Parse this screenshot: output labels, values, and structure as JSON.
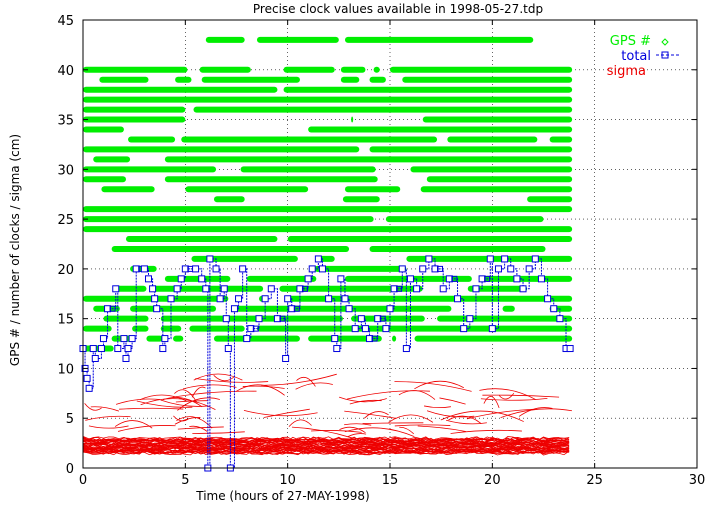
{
  "chart_data": {
    "type": "scatter",
    "title": "Precise clock values available in 1998-05-27.tdp",
    "xlabel": "Time (hours of 27-MAY-1998)",
    "ylabel": "GPS # / number of clocks / sigma (cm)",
    "xlim": [
      0,
      30
    ],
    "ylim": [
      0,
      45
    ],
    "xticks": [
      "0",
      "5",
      "10",
      "15",
      "20",
      "25",
      "30"
    ],
    "yticks": [
      "0",
      "5",
      "10",
      "15",
      "20",
      "25",
      "30",
      "35",
      "40",
      "45"
    ],
    "grid": true,
    "legend_position": "top-right",
    "colors": {
      "gps": "#00ee00",
      "total": "#0000dd",
      "sigma": "#ee0000"
    },
    "series": [
      {
        "name": "GPS #",
        "marker": "diamond",
        "segments": [
          {
            "y": 43,
            "spans": [
              [
                6,
                7.9
              ],
              [
                8.5,
                12.5
              ],
              [
                12.8,
                22.0
              ]
            ]
          },
          {
            "y": 40,
            "spans": [
              [
                0,
                5.1
              ],
              [
                5.7,
                8.2
              ],
              [
                9.8,
                12.3
              ],
              [
                12.6,
                13.8
              ],
              [
                14.2,
                14.5
              ],
              [
                15.0,
                23.9
              ]
            ]
          },
          {
            "y": 39,
            "spans": [
              [
                0.8,
                3.2
              ],
              [
                4.5,
                5.3
              ],
              [
                5.8,
                10.6
              ],
              [
                12.6,
                13.5
              ],
              [
                14.0,
                14.8
              ],
              [
                15.6,
                23.9
              ]
            ]
          },
          {
            "y": 38,
            "spans": [
              [
                0,
                9.5
              ],
              [
                9.8,
                23.9
              ]
            ]
          },
          {
            "y": 37,
            "spans": [
              [
                0,
                23.9
              ]
            ]
          },
          {
            "y": 36,
            "spans": [
              [
                0,
                5.0
              ],
              [
                5.4,
                23.9
              ]
            ]
          },
          {
            "y": 35,
            "spans": [
              [
                0,
                5.0
              ],
              [
                13.1,
                13.2
              ],
              [
                16.6,
                23.9
              ]
            ]
          },
          {
            "y": 34,
            "spans": [
              [
                0,
                2.0
              ],
              [
                11.0,
                23.9
              ]
            ]
          },
          {
            "y": 33,
            "spans": [
              [
                2.2,
                4.5
              ],
              [
                4.8,
                17.3
              ],
              [
                17.8,
                22.2
              ],
              [
                22.8,
                23.9
              ]
            ]
          },
          {
            "y": 32,
            "spans": [
              [
                0,
                13.5
              ],
              [
                14.0,
                23.9
              ]
            ]
          },
          {
            "y": 31,
            "spans": [
              [
                0.5,
                2.3
              ],
              [
                4.0,
                23.9
              ]
            ]
          },
          {
            "y": 30,
            "spans": [
              [
                0,
                6.5
              ],
              [
                7.7,
                14.3
              ],
              [
                16.0,
                23.9
              ]
            ]
          },
          {
            "y": 29,
            "spans": [
              [
                0,
                2.1
              ],
              [
                4.0,
                14.4
              ],
              [
                16.8,
                23.9
              ]
            ]
          },
          {
            "y": 28,
            "spans": [
              [
                0.9,
                3.5
              ],
              [
                5.0,
                11.0
              ],
              [
                12.8,
                15.5
              ],
              [
                16.5,
                23.9
              ]
            ]
          },
          {
            "y": 27,
            "spans": [
              [
                6.4,
                7.9
              ],
              [
                12.7,
                14.5
              ],
              [
                21.7,
                23.9
              ]
            ]
          },
          {
            "y": 26,
            "spans": [
              [
                0,
                23.9
              ]
            ]
          },
          {
            "y": 25,
            "spans": [
              [
                0,
                14.2
              ],
              [
                14.8,
                22.5
              ]
            ]
          },
          {
            "y": 24,
            "spans": [
              [
                0,
                23.9
              ]
            ]
          },
          {
            "y": 23,
            "spans": [
              [
                2.1,
                9.5
              ],
              [
                10.0,
                23.9
              ]
            ]
          },
          {
            "y": 22,
            "spans": [
              [
                1.4,
                13.0
              ],
              [
                14.0,
                22.6
              ]
            ]
          },
          {
            "y": 21,
            "spans": [
              [
                5.3,
                10.5
              ],
              [
                11.5,
                12.3
              ],
              [
                15.8,
                23.9
              ]
            ]
          },
          {
            "y": 20,
            "spans": [
              [
                2.3,
                3.6
              ],
              [
                11.3,
                15.8
              ]
            ]
          },
          {
            "y": 19,
            "spans": [
              [
                4.0,
                7.2
              ],
              [
                8.0,
                11.4
              ],
              [
                12.8,
                19.0
              ],
              [
                19.6,
                23.9
              ]
            ]
          },
          {
            "y": 18,
            "spans": [
              [
                1.5,
                3.1
              ],
              [
                3.4,
                8.8
              ],
              [
                9.6,
                16.6
              ],
              [
                18.8,
                21.7
              ]
            ]
          },
          {
            "y": 17,
            "spans": [
              [
                0,
                7.1
              ],
              [
                8.6,
                9.0
              ],
              [
                10.0,
                23.9
              ]
            ]
          },
          {
            "y": 16,
            "spans": [
              [
                0.5,
                1.8
              ],
              [
                2.3,
                6.5
              ],
              [
                7.3,
                18.0
              ],
              [
                20.5,
                21.1
              ],
              [
                22.8,
                23.9
              ]
            ]
          },
          {
            "y": 15,
            "spans": [
              [
                1.0,
                3.2
              ],
              [
                3.8,
                12.7
              ],
              [
                13.1,
                16.7
              ],
              [
                17.3,
                23.9
              ]
            ]
          },
          {
            "y": 14,
            "spans": [
              [
                0,
                1.4
              ],
              [
                2.4,
                3.2
              ],
              [
                3.8,
                4.8
              ],
              [
                5.2,
                7.9
              ],
              [
                8.5,
                23.9
              ]
            ]
          },
          {
            "y": 13,
            "spans": [
              [
                1.4,
                2.5
              ],
              [
                3.1,
                3.9
              ],
              [
                4.4,
                4.9
              ],
              [
                6.4,
                10.6
              ],
              [
                11.0,
                14.6
              ],
              [
                15.1,
                15.3
              ],
              [
                16.2,
                23.9
              ]
            ]
          },
          {
            "y": 12,
            "spans": [
              [
                0,
                1.5
              ]
            ]
          }
        ]
      },
      {
        "name": "total",
        "marker": "square",
        "x": [
          0,
          0.1,
          0.2,
          0.3,
          0.5,
          0.6,
          0.9,
          1.0,
          1.2,
          1.6,
          1.7,
          2.0,
          2.1,
          2.2,
          2.4,
          2.6,
          3.0,
          3.2,
          3.4,
          3.5,
          3.6,
          3.9,
          4.0,
          4.3,
          4.6,
          4.8,
          5.0,
          5.5,
          5.8,
          6.0,
          6.1,
          6.2,
          6.5,
          6.7,
          6.9,
          7.0,
          7.1,
          7.2,
          7.4,
          7.6,
          7.8,
          8.0,
          8.2,
          8.6,
          8.9,
          9.2,
          9.5,
          9.9,
          10.0,
          10.2,
          10.6,
          11.0,
          11.2,
          11.5,
          11.7,
          12.0,
          12.3,
          12.4,
          12.6,
          12.8,
          13.0,
          13.3,
          13.6,
          13.8,
          14.0,
          14.4,
          14.8,
          15.0,
          15.2,
          15.6,
          15.8,
          16.0,
          16.3,
          16.6,
          16.9,
          17.2,
          17.6,
          17.9,
          18.3,
          18.6,
          18.9,
          19.2,
          19.5,
          19.9,
          20.0,
          20.3,
          20.6,
          20.9,
          21.2,
          21.5,
          21.8,
          22.1,
          22.4,
          22.7,
          23.0,
          23.3,
          23.6,
          23.8
        ],
        "y": [
          12,
          10,
          9,
          8,
          12,
          11,
          12,
          13,
          16,
          18,
          12,
          13,
          11,
          12,
          13,
          20,
          20,
          19,
          18,
          17,
          16,
          12,
          13,
          17,
          18,
          19,
          20,
          20,
          19,
          18,
          0,
          21,
          20,
          17,
          18,
          15,
          12,
          0,
          16,
          17,
          20,
          13,
          14,
          15,
          17,
          18,
          15,
          11,
          17,
          16,
          18,
          19,
          20,
          21,
          20,
          17,
          13,
          12,
          19,
          17,
          16,
          14,
          15,
          14,
          13,
          15,
          14,
          16,
          18,
          20,
          12,
          19,
          18,
          20,
          21,
          20,
          18,
          19,
          17,
          14,
          15,
          18,
          19,
          21,
          14,
          20,
          21,
          20,
          19,
          18,
          20,
          21,
          19,
          17,
          16,
          15,
          12,
          12
        ]
      },
      {
        "name": "sigma",
        "marker": "line",
        "description_values": {
          "base_band": [
            1.5,
            3.0
          ],
          "upper_scatter": [
            3.0,
            10.0
          ]
        }
      }
    ]
  }
}
